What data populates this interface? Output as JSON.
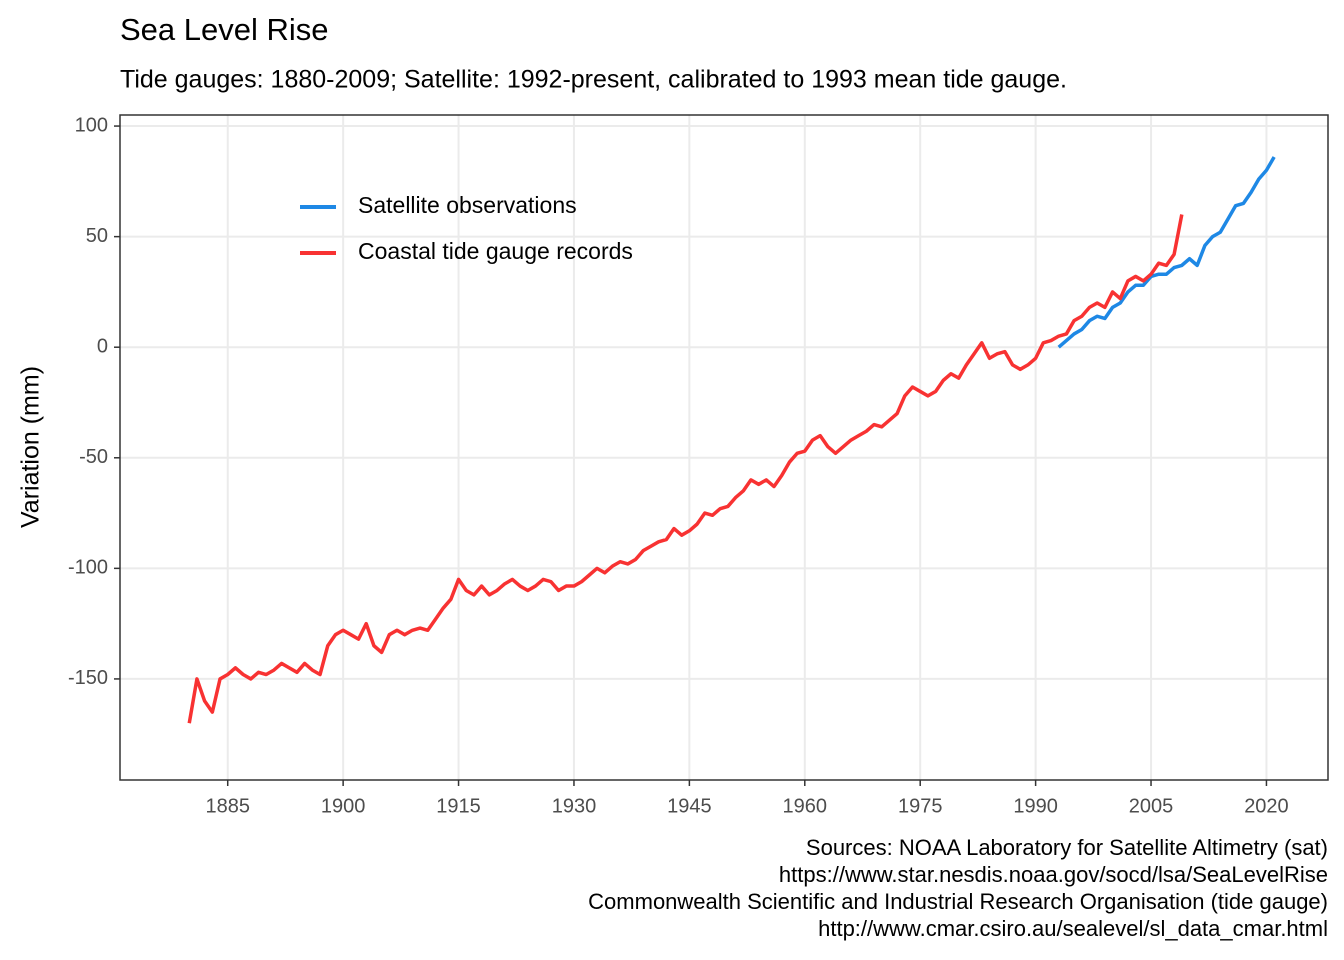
{
  "chart_data": {
    "type": "line",
    "title": "Sea Level Rise",
    "subtitle": "Tide gauges: 1880-2009; Satellite: 1992-present, calibrated to 1993 mean tide gauge.",
    "y_label": "Variation (mm)",
    "caption": [
      "Sources: NOAA Laboratory for Satellite Altimetry (sat)",
      "https://www.star.nesdis.noaa.gov/socd/lsa/SeaLevelRise",
      "Commonwealth Scientific and Industrial Research Organisation (tide gauge)",
      "http://www.cmar.csiro.au/sealevel/sl_data_cmar.html"
    ],
    "xlim": [
      1871,
      2028
    ],
    "xticks": [
      1885,
      1900,
      1915,
      1930,
      1945,
      1960,
      1975,
      1990,
      2005,
      2020
    ],
    "ylim": [
      -195.7,
      105
    ],
    "yticks": [
      -150,
      -100,
      -50,
      0,
      50,
      100
    ],
    "grid": true,
    "legend": "top-left",
    "series": [
      {
        "name": "Satellite observations",
        "color": "#1e88e5",
        "x": [
          1993,
          1994,
          1995,
          1996,
          1997,
          1998,
          1999,
          2000,
          2001,
          2002,
          2003,
          2004,
          2005,
          2006,
          2007,
          2008,
          2009,
          2010,
          2011,
          2012,
          2013,
          2014,
          2015,
          2016,
          2017,
          2018,
          2019,
          2020,
          2021
        ],
        "values": [
          0,
          3,
          6,
          8,
          12,
          14,
          13,
          18,
          20,
          25,
          28,
          28,
          32,
          33,
          33,
          36,
          37,
          40,
          37,
          46,
          50,
          52,
          58,
          64,
          65,
          70,
          76,
          80,
          86
        ]
      },
      {
        "name": "Coastal tide gauge records",
        "color": "#f83232",
        "x": [
          1880,
          1881,
          1882,
          1883,
          1884,
          1885,
          1886,
          1887,
          1888,
          1889,
          1890,
          1891,
          1892,
          1893,
          1894,
          1895,
          1896,
          1897,
          1898,
          1899,
          1900,
          1901,
          1902,
          1903,
          1904,
          1905,
          1906,
          1907,
          1908,
          1909,
          1910,
          1911,
          1912,
          1913,
          1914,
          1915,
          1916,
          1917,
          1918,
          1919,
          1920,
          1921,
          1922,
          1923,
          1924,
          1925,
          1926,
          1927,
          1928,
          1929,
          1930,
          1931,
          1932,
          1933,
          1934,
          1935,
          1936,
          1937,
          1938,
          1939,
          1940,
          1941,
          1942,
          1943,
          1944,
          1945,
          1946,
          1947,
          1948,
          1949,
          1950,
          1951,
          1952,
          1953,
          1954,
          1955,
          1956,
          1957,
          1958,
          1959,
          1960,
          1961,
          1962,
          1963,
          1964,
          1965,
          1966,
          1967,
          1968,
          1969,
          1970,
          1971,
          1972,
          1973,
          1974,
          1975,
          1976,
          1977,
          1978,
          1979,
          1980,
          1981,
          1982,
          1983,
          1984,
          1985,
          1986,
          1987,
          1988,
          1989,
          1990,
          1991,
          1992,
          1993,
          1994,
          1995,
          1996,
          1997,
          1998,
          1999,
          2000,
          2001,
          2002,
          2003,
          2004,
          2005,
          2006,
          2007,
          2008,
          2009
        ],
        "values": [
          -170,
          -150,
          -160,
          -165,
          -150,
          -148,
          -145,
          -148,
          -150,
          -147,
          -148,
          -146,
          -143,
          -145,
          -147,
          -143,
          -146,
          -148,
          -135,
          -130,
          -128,
          -130,
          -132,
          -125,
          -135,
          -138,
          -130,
          -128,
          -130,
          -128,
          -127,
          -128,
          -123,
          -118,
          -114,
          -105,
          -110,
          -112,
          -108,
          -112,
          -110,
          -107,
          -105,
          -108,
          -110,
          -108,
          -105,
          -106,
          -110,
          -108,
          -108,
          -106,
          -103,
          -100,
          -102,
          -99,
          -97,
          -98,
          -96,
          -92,
          -90,
          -88,
          -87,
          -82,
          -85,
          -83,
          -80,
          -75,
          -76,
          -73,
          -72,
          -68,
          -65,
          -60,
          -62,
          -60,
          -63,
          -58,
          -52,
          -48,
          -47,
          -42,
          -40,
          -45,
          -48,
          -45,
          -42,
          -40,
          -38,
          -35,
          -36,
          -33,
          -30,
          -22,
          -18,
          -20,
          -22,
          -20,
          -15,
          -12,
          -14,
          -8,
          -3,
          2,
          -5,
          -3,
          -2,
          -8,
          -10,
          -8,
          -5,
          2,
          3,
          5,
          6,
          12,
          14,
          18,
          20,
          18,
          25,
          22,
          30,
          32,
          30,
          33,
          38,
          37,
          42,
          60
        ]
      }
    ]
  }
}
